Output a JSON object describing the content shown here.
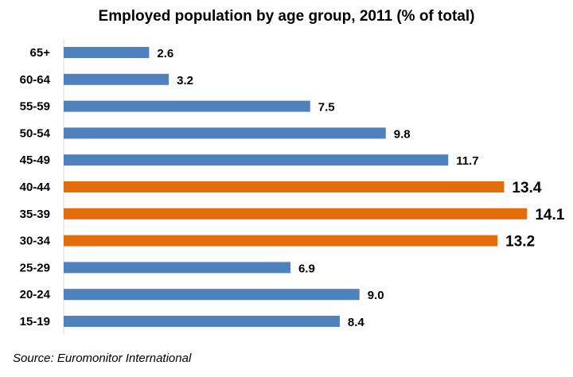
{
  "chart_data": {
    "type": "bar",
    "orientation": "horizontal",
    "title": "Employed population by age group, 2011 (% of total)",
    "xlabel": "",
    "ylabel": "",
    "grid": false,
    "categories": [
      "65+",
      "60-64",
      "55-59",
      "50-54",
      "45-49",
      "40-44",
      "35-39",
      "30-34",
      "25-29",
      "20-24",
      "15-19"
    ],
    "values": [
      2.6,
      3.2,
      7.5,
      9.8,
      11.7,
      13.4,
      14.1,
      13.2,
      6.9,
      9.0,
      8.4
    ],
    "value_labels": [
      "2.6",
      "3.2",
      "7.5",
      "9.8",
      "11.7",
      "13.4",
      "14.1",
      "13.2",
      "6.9",
      "9.0",
      "8.4"
    ],
    "highlighted": [
      false,
      false,
      false,
      false,
      false,
      true,
      true,
      true,
      false,
      false,
      false
    ],
    "colors": {
      "default": "#4F81BD",
      "highlight": "#E46C0A"
    }
  },
  "source": "Source: Euromonitor International"
}
